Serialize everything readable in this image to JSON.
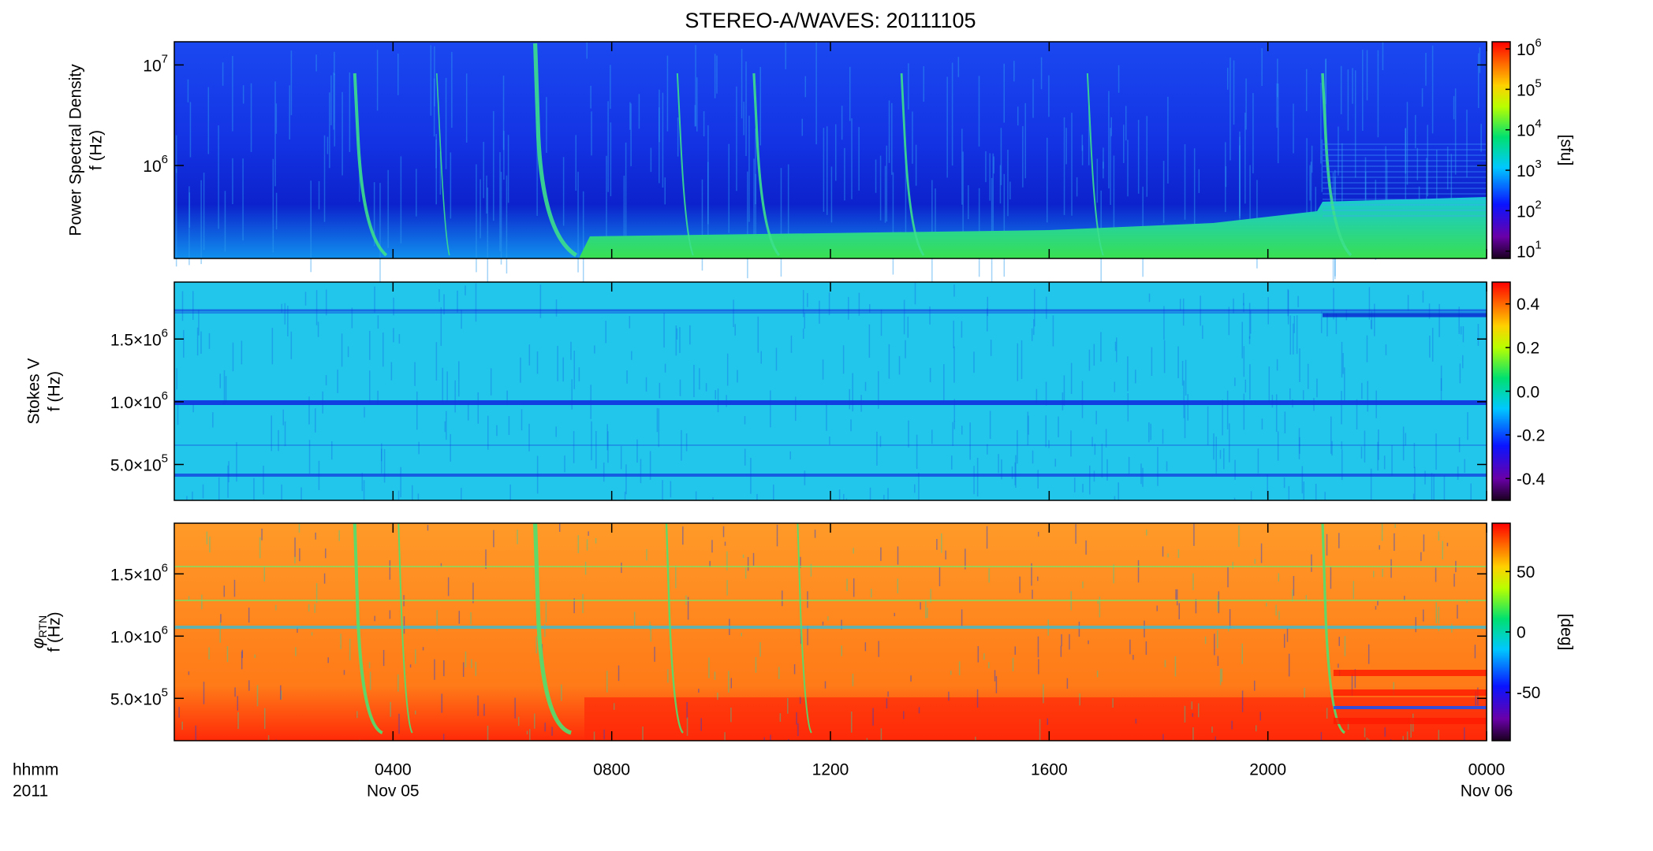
{
  "chart_data": {
    "type": "heatmap",
    "title": "STEREO-A/WAVES: 20111105",
    "xlabel": [
      "hhmm",
      "2011"
    ],
    "xlim": [
      0,
      24
    ],
    "xticks": [
      {
        "value": 4,
        "label": "0400",
        "date": "Nov 05"
      },
      {
        "value": 8,
        "label": "0800"
      },
      {
        "value": 12,
        "label": "1200"
      },
      {
        "value": 16,
        "label": "1600"
      },
      {
        "value": 20,
        "label": "2000"
      },
      {
        "value": 24,
        "label": "0000",
        "date": "Nov 06"
      }
    ],
    "panels": [
      {
        "ylabel": [
          "Power Spectral Density",
          "f (Hz)"
        ],
        "ylim": [
          119000,
          17000000
        ],
        "ylog": true,
        "yticks": [
          {
            "value": 1000000,
            "label": "10",
            "exp": "6"
          },
          {
            "value": 10000000,
            "label": "10",
            "exp": "7"
          }
        ],
        "clim": [
          6.6,
          1500000
        ],
        "clog": true,
        "cticks": [
          {
            "value": 10,
            "label": "10",
            "exp": "1"
          },
          {
            "value": 100,
            "label": "10",
            "exp": "2"
          },
          {
            "value": 1000,
            "label": "10",
            "exp": "3"
          },
          {
            "value": 10000,
            "label": "10",
            "exp": "4"
          },
          {
            "value": 100000,
            "label": "10",
            "exp": "5"
          },
          {
            "value": 1000000,
            "label": "10",
            "exp": "6"
          }
        ],
        "clabel": "[sfu]"
      },
      {
        "ylabel": [
          "Stokes V",
          "f (Hz)"
        ],
        "ylim": [
          214000,
          1954000
        ],
        "ylog": false,
        "yticks": [
          {
            "value": 500000,
            "label": "5.0×10",
            "exp": "5"
          },
          {
            "value": 1000000,
            "label": "1.0×10",
            "exp": "6"
          },
          {
            "value": 1500000,
            "label": "1.5×10",
            "exp": "6"
          }
        ],
        "clim": [
          -0.5,
          0.5
        ],
        "clog": false,
        "cticks": [
          -0.4,
          -0.2,
          {
            "value": 0,
            "label": "0.0"
          },
          0.2,
          0.4
        ]
      },
      {
        "ylabel": [
          {
            "label": "φ",
            "sub": "RTN"
          },
          "f (Hz)"
        ],
        "ylim": [
          160000,
          1907000
        ],
        "ylog": false,
        "yticks": [
          {
            "value": 500000,
            "label": "5.0×10",
            "exp": "5"
          },
          {
            "value": 1000000,
            "label": "1.0×10",
            "exp": "6"
          },
          {
            "value": 1500000,
            "label": "1.5×10",
            "exp": "6"
          }
        ],
        "clim": [
          -90,
          90
        ],
        "clog": false,
        "cticks": [
          -50,
          0,
          50
        ],
        "clabel": "[deg]"
      }
    ]
  }
}
